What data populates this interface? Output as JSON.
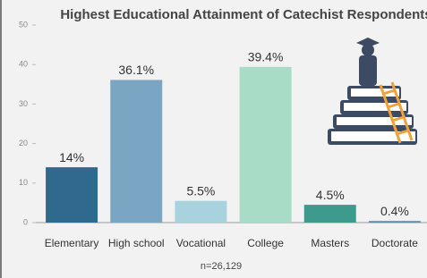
{
  "chart_data": {
    "type": "bar",
    "title": "Highest Educational Attainment of Catechist Respondents",
    "categories": [
      "Elementary",
      "High school",
      "Vocational",
      "College",
      "Masters",
      "Doctorate"
    ],
    "values": [
      14,
      36.1,
      5.5,
      39.4,
      4.5,
      0.4
    ],
    "value_labels": [
      "14%",
      "36.1%",
      "5.5%",
      "39.4%",
      "4.5%",
      "0.4%"
    ],
    "colors": [
      "#2f6a8e",
      "#7aa6c4",
      "#a9d2df",
      "#a9dcc6",
      "#3d9a8c",
      "#5d8fa3"
    ],
    "ylim": [
      0,
      50
    ],
    "yticks": [
      0,
      10,
      20,
      30,
      40,
      50
    ],
    "annotation": "n=26,129"
  }
}
